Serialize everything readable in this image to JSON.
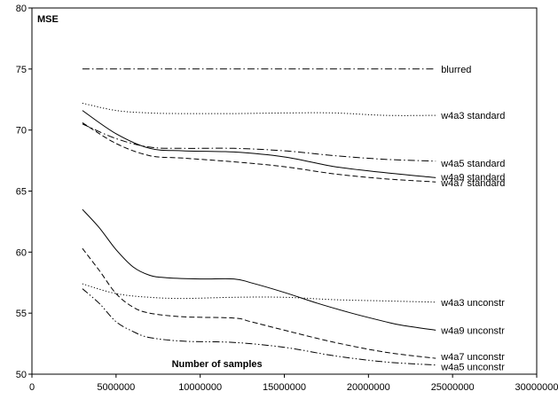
{
  "chart_data": {
    "type": "line",
    "ylabel": "MSE",
    "xlabel": "Number of samples",
    "xlim": [
      0,
      30000000
    ],
    "ylim": [
      50,
      80
    ],
    "x_ticks": [
      0,
      5000000,
      10000000,
      15000000,
      20000000,
      25000000,
      30000000
    ],
    "x_tick_labels": [
      "0",
      "5000000",
      "10000000",
      "15000000",
      "20000000",
      "25000000",
      "30000000"
    ],
    "y_ticks": [
      50,
      55,
      60,
      65,
      70,
      75,
      80
    ],
    "y_tick_labels": [
      "50",
      "55",
      "60",
      "65",
      "70",
      "75",
      "80"
    ],
    "grid": false,
    "legend": "inline-right",
    "series": [
      {
        "name": "blurred",
        "style": "dashdot",
        "x": [
          3000000,
          24000000
        ],
        "y": [
          75.0,
          75.0
        ]
      },
      {
        "name": "w4a3 standard",
        "style": "dotted",
        "x": [
          3000000,
          5000000,
          7000000,
          9000000,
          12000000,
          15000000,
          18000000,
          21000000,
          24000000
        ],
        "y": [
          72.2,
          71.6,
          71.4,
          71.35,
          71.35,
          71.4,
          71.4,
          71.2,
          71.2
        ]
      },
      {
        "name": "w4a5 standard",
        "style": "dashdot",
        "x": [
          3000000,
          5000000,
          7000000,
          9000000,
          12000000,
          15000000,
          18000000,
          21000000,
          24000000
        ],
        "y": [
          70.5,
          69.3,
          68.6,
          68.5,
          68.5,
          68.3,
          67.9,
          67.6,
          67.45
        ]
      },
      {
        "name": "w4a9 standard",
        "style": "solid",
        "x": [
          3000000,
          5000000,
          7000000,
          9000000,
          12000000,
          15000000,
          18000000,
          21000000,
          24000000
        ],
        "y": [
          71.6,
          69.7,
          68.5,
          68.3,
          68.2,
          67.8,
          67.0,
          66.5,
          66.1
        ]
      },
      {
        "name": "w4a7 standard",
        "style": "dashed",
        "x": [
          3000000,
          5000000,
          7000000,
          9000000,
          12000000,
          15000000,
          18000000,
          21000000,
          24000000
        ],
        "y": [
          70.6,
          68.9,
          67.9,
          67.7,
          67.4,
          67.0,
          66.4,
          66.0,
          65.75
        ]
      },
      {
        "name": "w4a3 unconstr",
        "style": "dotted",
        "x": [
          3000000,
          5000000,
          7000000,
          9000000,
          12000000,
          15000000,
          18000000,
          21000000,
          24000000
        ],
        "y": [
          57.4,
          56.6,
          56.3,
          56.2,
          56.3,
          56.3,
          56.1,
          56.0,
          55.9
        ]
      },
      {
        "name": "w4a9 unconstr",
        "style": "solid",
        "x": [
          3000000,
          4000000,
          5000000,
          6000000,
          7000000,
          8000000,
          10000000,
          12000000,
          13000000,
          15000000,
          17000000,
          19000000,
          21000000,
          22000000,
          24000000
        ],
        "y": [
          63.5,
          62.0,
          60.2,
          58.8,
          58.1,
          57.9,
          57.8,
          57.8,
          57.5,
          56.7,
          55.8,
          55.0,
          54.3,
          54.0,
          53.6
        ]
      },
      {
        "name": "w4a7 unconstr",
        "style": "dashed",
        "x": [
          3000000,
          4000000,
          5000000,
          6000000,
          7000000,
          9000000,
          12000000,
          13000000,
          15000000,
          18000000,
          21000000,
          24000000
        ],
        "y": [
          60.3,
          58.5,
          56.6,
          55.5,
          55.0,
          54.7,
          54.6,
          54.3,
          53.6,
          52.6,
          51.8,
          51.3
        ]
      },
      {
        "name": "w4a5 unconstr",
        "style": "dashdotdot",
        "x": [
          3000000,
          4000000,
          5000000,
          6000000,
          7000000,
          9000000,
          12000000,
          15000000,
          18000000,
          21000000,
          24000000
        ],
        "y": [
          57.0,
          55.8,
          54.3,
          53.5,
          53.0,
          52.7,
          52.6,
          52.2,
          51.5,
          51.0,
          50.75
        ]
      }
    ]
  }
}
